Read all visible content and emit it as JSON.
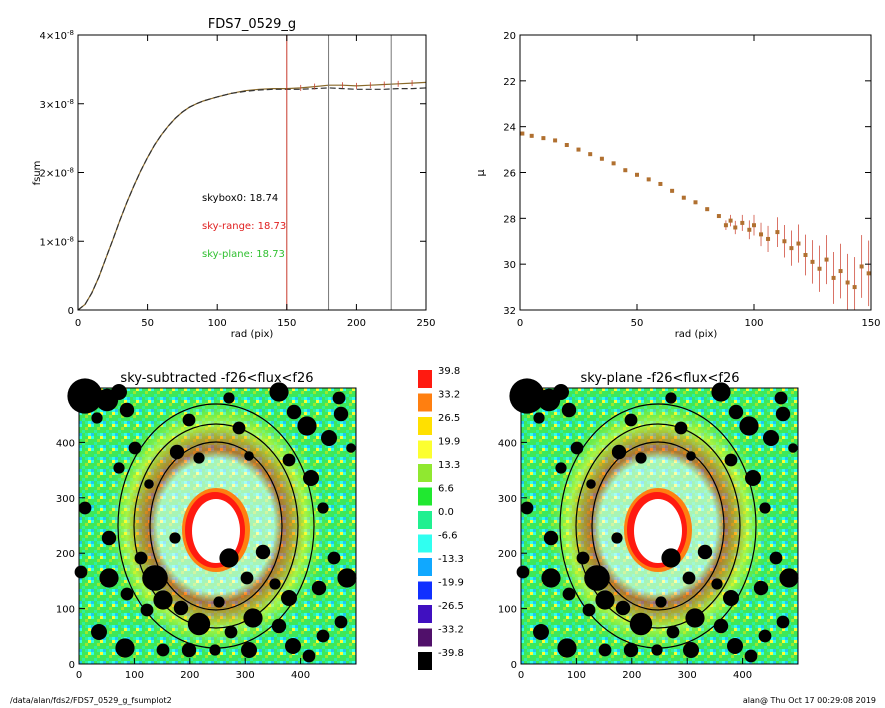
{
  "chart_data": [
    {
      "type": "line",
      "title": "FDS7_0529_g",
      "xlabel": "rad (pix)",
      "ylabel": "fsum",
      "xlim": [
        0,
        250
      ],
      "ylim": [
        0,
        4e-08
      ],
      "x_ticks": [
        "0",
        "50",
        "100",
        "150",
        "200",
        "250"
      ],
      "y_ticks": [
        {
          "mant": "0",
          "exp": ""
        },
        {
          "mant": "1×10",
          "exp": "-8"
        },
        {
          "mant": "2×10",
          "exp": "-8"
        },
        {
          "mant": "3×10",
          "exp": "-8"
        },
        {
          "mant": "4×10",
          "exp": "-8"
        }
      ],
      "x": [
        0,
        5,
        10,
        15,
        20,
        25,
        30,
        35,
        40,
        45,
        50,
        55,
        60,
        65,
        70,
        75,
        80,
        85,
        90,
        95,
        100,
        110,
        120,
        130,
        140,
        150,
        160,
        170,
        180,
        190,
        200,
        210,
        220,
        230,
        240,
        250
      ],
      "series": [
        {
          "name": "",
          "color": "#8a6a2a",
          "values": [
            0,
            8e-10,
            2.5e-09,
            4.8e-09,
            7.5e-09,
            1.02e-08,
            1.3e-08,
            1.56e-08,
            1.8e-08,
            2.02e-08,
            2.22e-08,
            2.4e-08,
            2.55e-08,
            2.68e-08,
            2.79e-08,
            2.88e-08,
            2.95e-08,
            3e-08,
            3.04e-08,
            3.07e-08,
            3.1e-08,
            3.15e-08,
            3.19e-08,
            3.21e-08,
            3.22e-08,
            3.22e-08,
            3.23e-08,
            3.25e-08,
            3.27e-08,
            3.27e-08,
            3.26e-08,
            3.27e-08,
            3.28e-08,
            3.29e-08,
            3.3e-08,
            3.31e-08
          ]
        },
        {
          "name": "",
          "color": "#333333",
          "dashed": true,
          "values": [
            0,
            8e-10,
            2.5e-09,
            4.8e-09,
            7.5e-09,
            1.02e-08,
            1.3e-08,
            1.56e-08,
            1.8e-08,
            2.02e-08,
            2.22e-08,
            2.4e-08,
            2.55e-08,
            2.68e-08,
            2.79e-08,
            2.88e-08,
            2.95e-08,
            3e-08,
            3.04e-08,
            3.07e-08,
            3.1e-08,
            3.15e-08,
            3.18e-08,
            3.2e-08,
            3.21e-08,
            3.21e-08,
            3.21e-08,
            3.22e-08,
            3.23e-08,
            3.22e-08,
            3.21e-08,
            3.21e-08,
            3.21e-08,
            3.22e-08,
            3.22e-08,
            3.23e-08
          ]
        }
      ],
      "vlines": [
        {
          "x": 150,
          "color": "#c83a2a"
        },
        {
          "x": 180,
          "color": "#777777"
        },
        {
          "x": 225,
          "color": "#777777"
        }
      ],
      "annotations": [
        {
          "text": "skybox0: 18.74",
          "color": "#000000"
        },
        {
          "text": "sky-range: 18.73",
          "color": "#e02020"
        },
        {
          "text": "sky-plane: 18.73",
          "color": "#30c030"
        }
      ]
    },
    {
      "type": "scatter",
      "title": "",
      "xlabel": "rad (pix)",
      "ylabel": "μ",
      "xlim": [
        0,
        150
      ],
      "ylim": [
        32,
        20
      ],
      "x_ticks": [
        "0",
        "50",
        "100",
        "150"
      ],
      "y_ticks": [
        "20",
        "22",
        "24",
        "26",
        "28",
        "30",
        "32"
      ],
      "x": [
        1,
        5,
        10,
        15,
        20,
        25,
        30,
        35,
        40,
        45,
        50,
        55,
        60,
        65,
        70,
        75,
        80,
        85,
        88,
        90,
        92,
        95,
        98,
        100,
        103,
        106,
        110,
        113,
        116,
        119,
        122,
        125,
        128,
        131,
        134,
        137,
        140,
        143,
        146,
        149
      ],
      "series": [
        {
          "name": "",
          "color": "#b07030",
          "values": [
            24.3,
            24.4,
            24.5,
            24.6,
            24.8,
            25.0,
            25.2,
            25.4,
            25.6,
            25.9,
            26.1,
            26.3,
            26.5,
            26.8,
            27.1,
            27.3,
            27.6,
            27.9,
            28.3,
            28.1,
            28.4,
            28.2,
            28.5,
            28.3,
            28.7,
            28.9,
            28.6,
            29.0,
            29.3,
            29.1,
            29.6,
            29.9,
            30.2,
            29.8,
            30.6,
            30.3,
            30.8,
            31.0,
            30.1,
            30.4
          ]
        }
      ]
    }
  ],
  "maps": [
    {
      "title": "sky-subtracted -f26<flux<f26",
      "x_ticks": [
        "0",
        "100",
        "200",
        "300",
        "400"
      ],
      "y_ticks": [
        "0",
        "100",
        "200",
        "300",
        "400"
      ]
    },
    {
      "title": "sky-plane -f26<flux<f26",
      "x_ticks": [
        "0",
        "100",
        "200",
        "300",
        "400"
      ],
      "y_ticks": [
        "0",
        "100",
        "200",
        "300",
        "400"
      ]
    }
  ],
  "colorbar": {
    "levels": [
      {
        "label": "39.8",
        "color": "#ff1a10"
      },
      {
        "label": "33.2",
        "color": "#ff7f10"
      },
      {
        "label": "26.5",
        "color": "#ffe000"
      },
      {
        "label": "19.9",
        "color": "#fcff30"
      },
      {
        "label": "13.3",
        "color": "#90e830"
      },
      {
        "label": "6.6",
        "color": "#20e830"
      },
      {
        "label": "0.0",
        "color": "#20f090"
      },
      {
        "label": "-6.6",
        "color": "#30fff0"
      },
      {
        "label": "-13.3",
        "color": "#10a8ff"
      },
      {
        "label": "-19.9",
        "color": "#1030ff"
      },
      {
        "label": "-26.5",
        "color": "#4010c0"
      },
      {
        "label": "-33.2",
        "color": "#50106a"
      },
      {
        "label": "-39.8",
        "color": "#000000"
      }
    ]
  },
  "footer": {
    "left": "/data/alan/fds2/FDS7_0529_g_fsumplot2",
    "right": "alan@  Thu Oct 17 00:29:08 2019"
  }
}
